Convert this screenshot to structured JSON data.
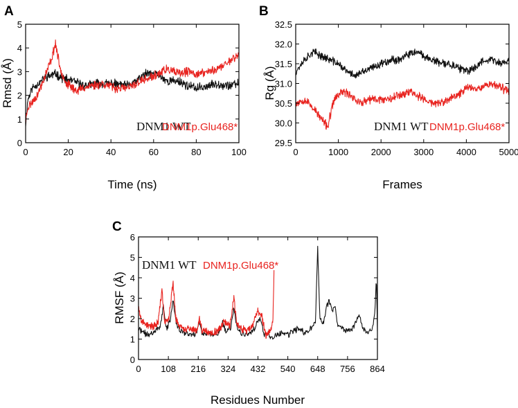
{
  "colors": {
    "wt": "#111111",
    "mut": "#e8231f",
    "axis": "#000000"
  },
  "chart_data": [
    {
      "type": "line",
      "panel": "A",
      "xlabel": "Time (ns)",
      "ylabel": "Rmsd (Å)",
      "xlim": [
        0,
        100
      ],
      "ylim": [
        0,
        5
      ],
      "xticks": [
        "0",
        "20",
        "40",
        "60",
        "80",
        "100"
      ],
      "yticks": [
        "0",
        "1",
        "2",
        "3",
        "4",
        "5"
      ],
      "legend": {
        "wt": "DNM1 WT",
        "mut": "DNM1p.Glu468*",
        "placement": "lower-right"
      },
      "series": [
        {
          "name": "DNM1 WT",
          "color_key": "wt",
          "noise": 0.15,
          "seed": 11,
          "points": [
            [
              0,
              0.8
            ],
            [
              1,
              1.8
            ],
            [
              3,
              2.3
            ],
            [
              6,
              2.5
            ],
            [
              10,
              2.8
            ],
            [
              14,
              2.9
            ],
            [
              18,
              2.7
            ],
            [
              22,
              2.6
            ],
            [
              28,
              2.4
            ],
            [
              34,
              2.5
            ],
            [
              40,
              2.5
            ],
            [
              48,
              2.4
            ],
            [
              52,
              2.6
            ],
            [
              56,
              2.9
            ],
            [
              62,
              2.9
            ],
            [
              66,
              2.6
            ],
            [
              72,
              2.6
            ],
            [
              76,
              2.4
            ],
            [
              80,
              2.3
            ],
            [
              86,
              2.4
            ],
            [
              90,
              2.5
            ],
            [
              95,
              2.4
            ],
            [
              100,
              2.5
            ]
          ]
        },
        {
          "name": "DNM1p.Glu468*",
          "color_key": "mut",
          "noise": 0.15,
          "seed": 23,
          "points": [
            [
              0,
              0.9
            ],
            [
              1,
              1.5
            ],
            [
              3,
              1.7
            ],
            [
              6,
              2.1
            ],
            [
              9,
              2.8
            ],
            [
              12,
              3.5
            ],
            [
              14,
              4.2
            ],
            [
              16,
              3.2
            ],
            [
              19,
              2.5
            ],
            [
              24,
              2.2
            ],
            [
              30,
              2.4
            ],
            [
              36,
              2.5
            ],
            [
              42,
              2.3
            ],
            [
              48,
              2.3
            ],
            [
              54,
              2.6
            ],
            [
              60,
              2.8
            ],
            [
              66,
              3.1
            ],
            [
              72,
              2.9
            ],
            [
              76,
              3.0
            ],
            [
              80,
              2.9
            ],
            [
              86,
              3.0
            ],
            [
              92,
              3.2
            ],
            [
              96,
              3.5
            ],
            [
              100,
              3.7
            ]
          ]
        }
      ]
    },
    {
      "type": "line",
      "panel": "B",
      "xlabel": "Frames",
      "ylabel": "Rg (Å)",
      "xlim": [
        0,
        5000
      ],
      "ylim": [
        29.5,
        32.5
      ],
      "xticks": [
        "0",
        "1000",
        "2000",
        "3000",
        "4000",
        "5000"
      ],
      "yticks": [
        "29.5",
        "30.0",
        "30.5",
        "31.0",
        "31.5",
        "32.0",
        "32.5"
      ],
      "legend": {
        "wt": "DNM1 WT",
        "mut": "DNM1p.Glu468*",
        "placement": "lower-right"
      },
      "series": [
        {
          "name": "DNM1 WT",
          "color_key": "wt",
          "noise": 0.08,
          "seed": 37,
          "points": [
            [
              0,
              31.3
            ],
            [
              200,
              31.6
            ],
            [
              400,
              31.8
            ],
            [
              600,
              31.7
            ],
            [
              800,
              31.6
            ],
            [
              1000,
              31.5
            ],
            [
              1200,
              31.3
            ],
            [
              1400,
              31.2
            ],
            [
              1600,
              31.3
            ],
            [
              1800,
              31.4
            ],
            [
              2000,
              31.5
            ],
            [
              2200,
              31.6
            ],
            [
              2400,
              31.6
            ],
            [
              2600,
              31.7
            ],
            [
              2800,
              31.8
            ],
            [
              3000,
              31.7
            ],
            [
              3200,
              31.6
            ],
            [
              3400,
              31.5
            ],
            [
              3600,
              31.5
            ],
            [
              3800,
              31.4
            ],
            [
              4000,
              31.3
            ],
            [
              4200,
              31.4
            ],
            [
              4400,
              31.6
            ],
            [
              4600,
              31.6
            ],
            [
              4800,
              31.5
            ],
            [
              5000,
              31.6
            ]
          ]
        },
        {
          "name": "DNM1p.Glu468*",
          "color_key": "mut",
          "noise": 0.09,
          "seed": 53,
          "points": [
            [
              0,
              30.5
            ],
            [
              200,
              30.6
            ],
            [
              400,
              30.4
            ],
            [
              600,
              30.1
            ],
            [
              750,
              29.9
            ],
            [
              900,
              30.6
            ],
            [
              1100,
              30.8
            ],
            [
              1300,
              30.7
            ],
            [
              1500,
              30.5
            ],
            [
              1800,
              30.6
            ],
            [
              2100,
              30.6
            ],
            [
              2400,
              30.7
            ],
            [
              2700,
              30.8
            ],
            [
              3000,
              30.6
            ],
            [
              3200,
              30.5
            ],
            [
              3400,
              30.5
            ],
            [
              3600,
              30.6
            ],
            [
              3800,
              30.7
            ],
            [
              4000,
              30.9
            ],
            [
              4300,
              30.9
            ],
            [
              4600,
              31.0
            ],
            [
              4800,
              30.9
            ],
            [
              5000,
              30.8
            ]
          ]
        }
      ]
    },
    {
      "type": "line",
      "panel": "C",
      "xlabel": "Residues Number",
      "ylabel": "RMSF (Å)",
      "xlim": [
        0,
        864
      ],
      "ylim": [
        0,
        6
      ],
      "xticks": [
        "0",
        "108",
        "216",
        "324",
        "432",
        "540",
        "648",
        "756",
        "864"
      ],
      "yticks": [
        "0",
        "1",
        "2",
        "3",
        "4",
        "5",
        "6"
      ],
      "legend": {
        "wt": "DNM1 WT",
        "mut": "DNM1p.Glu468*",
        "placement": "top-left"
      },
      "series": [
        {
          "name": "DNM1 WT",
          "color_key": "wt",
          "noise": 0.12,
          "seed": 71,
          "points": [
            [
              0,
              1.5
            ],
            [
              20,
              1.3
            ],
            [
              40,
              1.2
            ],
            [
              60,
              1.4
            ],
            [
              80,
              1.7
            ],
            [
              90,
              2.6
            ],
            [
              100,
              1.5
            ],
            [
              115,
              1.9
            ],
            [
              125,
              3.0
            ],
            [
              135,
              1.8
            ],
            [
              150,
              1.4
            ],
            [
              170,
              1.3
            ],
            [
              190,
              1.2
            ],
            [
              210,
              1.3
            ],
            [
              220,
              1.9
            ],
            [
              230,
              1.3
            ],
            [
              260,
              1.2
            ],
            [
              290,
              1.3
            ],
            [
              305,
              1.8
            ],
            [
              315,
              1.3
            ],
            [
              335,
              1.6
            ],
            [
              345,
              2.6
            ],
            [
              355,
              1.6
            ],
            [
              370,
              1.3
            ],
            [
              390,
              1.2
            ],
            [
              410,
              1.3
            ],
            [
              430,
              1.8
            ],
            [
              440,
              2.0
            ],
            [
              455,
              1.2
            ],
            [
              470,
              1.3
            ],
            [
              480,
              1.0
            ],
            [
              500,
              1.2
            ],
            [
              520,
              1.3
            ],
            [
              540,
              1.2
            ],
            [
              560,
              1.4
            ],
            [
              580,
              1.5
            ],
            [
              600,
              1.3
            ],
            [
              620,
              1.5
            ],
            [
              640,
              1.8
            ],
            [
              648,
              5.5
            ],
            [
              656,
              2.0
            ],
            [
              670,
              1.8
            ],
            [
              680,
              2.6
            ],
            [
              690,
              2.9
            ],
            [
              700,
              2.3
            ],
            [
              710,
              2.7
            ],
            [
              720,
              1.7
            ],
            [
              740,
              1.5
            ],
            [
              760,
              1.4
            ],
            [
              780,
              1.6
            ],
            [
              800,
              2.2
            ],
            [
              810,
              1.5
            ],
            [
              830,
              1.3
            ],
            [
              845,
              1.4
            ],
            [
              855,
              2.3
            ],
            [
              860,
              4.0
            ],
            [
              864,
              1.5
            ]
          ]
        },
        {
          "name": "DNM1p.Glu468*",
          "color_key": "mut",
          "noise": 0.15,
          "seed": 89,
          "points": [
            [
              0,
              2.5
            ],
            [
              10,
              1.9
            ],
            [
              30,
              1.7
            ],
            [
              50,
              1.6
            ],
            [
              70,
              1.8
            ],
            [
              85,
              3.4
            ],
            [
              95,
              1.8
            ],
            [
              110,
              2.0
            ],
            [
              125,
              3.8
            ],
            [
              135,
              2.0
            ],
            [
              150,
              1.6
            ],
            [
              170,
              1.5
            ],
            [
              190,
              1.5
            ],
            [
              210,
              1.4
            ],
            [
              220,
              2.0
            ],
            [
              230,
              1.4
            ],
            [
              260,
              1.3
            ],
            [
              290,
              1.4
            ],
            [
              310,
              1.9
            ],
            [
              330,
              1.6
            ],
            [
              345,
              3.0
            ],
            [
              355,
              1.8
            ],
            [
              370,
              1.5
            ],
            [
              390,
              1.4
            ],
            [
              410,
              1.6
            ],
            [
              432,
              2.4
            ],
            [
              445,
              2.2
            ],
            [
              460,
              1.2
            ],
            [
              475,
              1.4
            ],
            [
              480,
              1.6
            ],
            [
              486,
              1.8
            ],
            [
              490,
              4.3
            ]
          ]
        }
      ]
    }
  ]
}
